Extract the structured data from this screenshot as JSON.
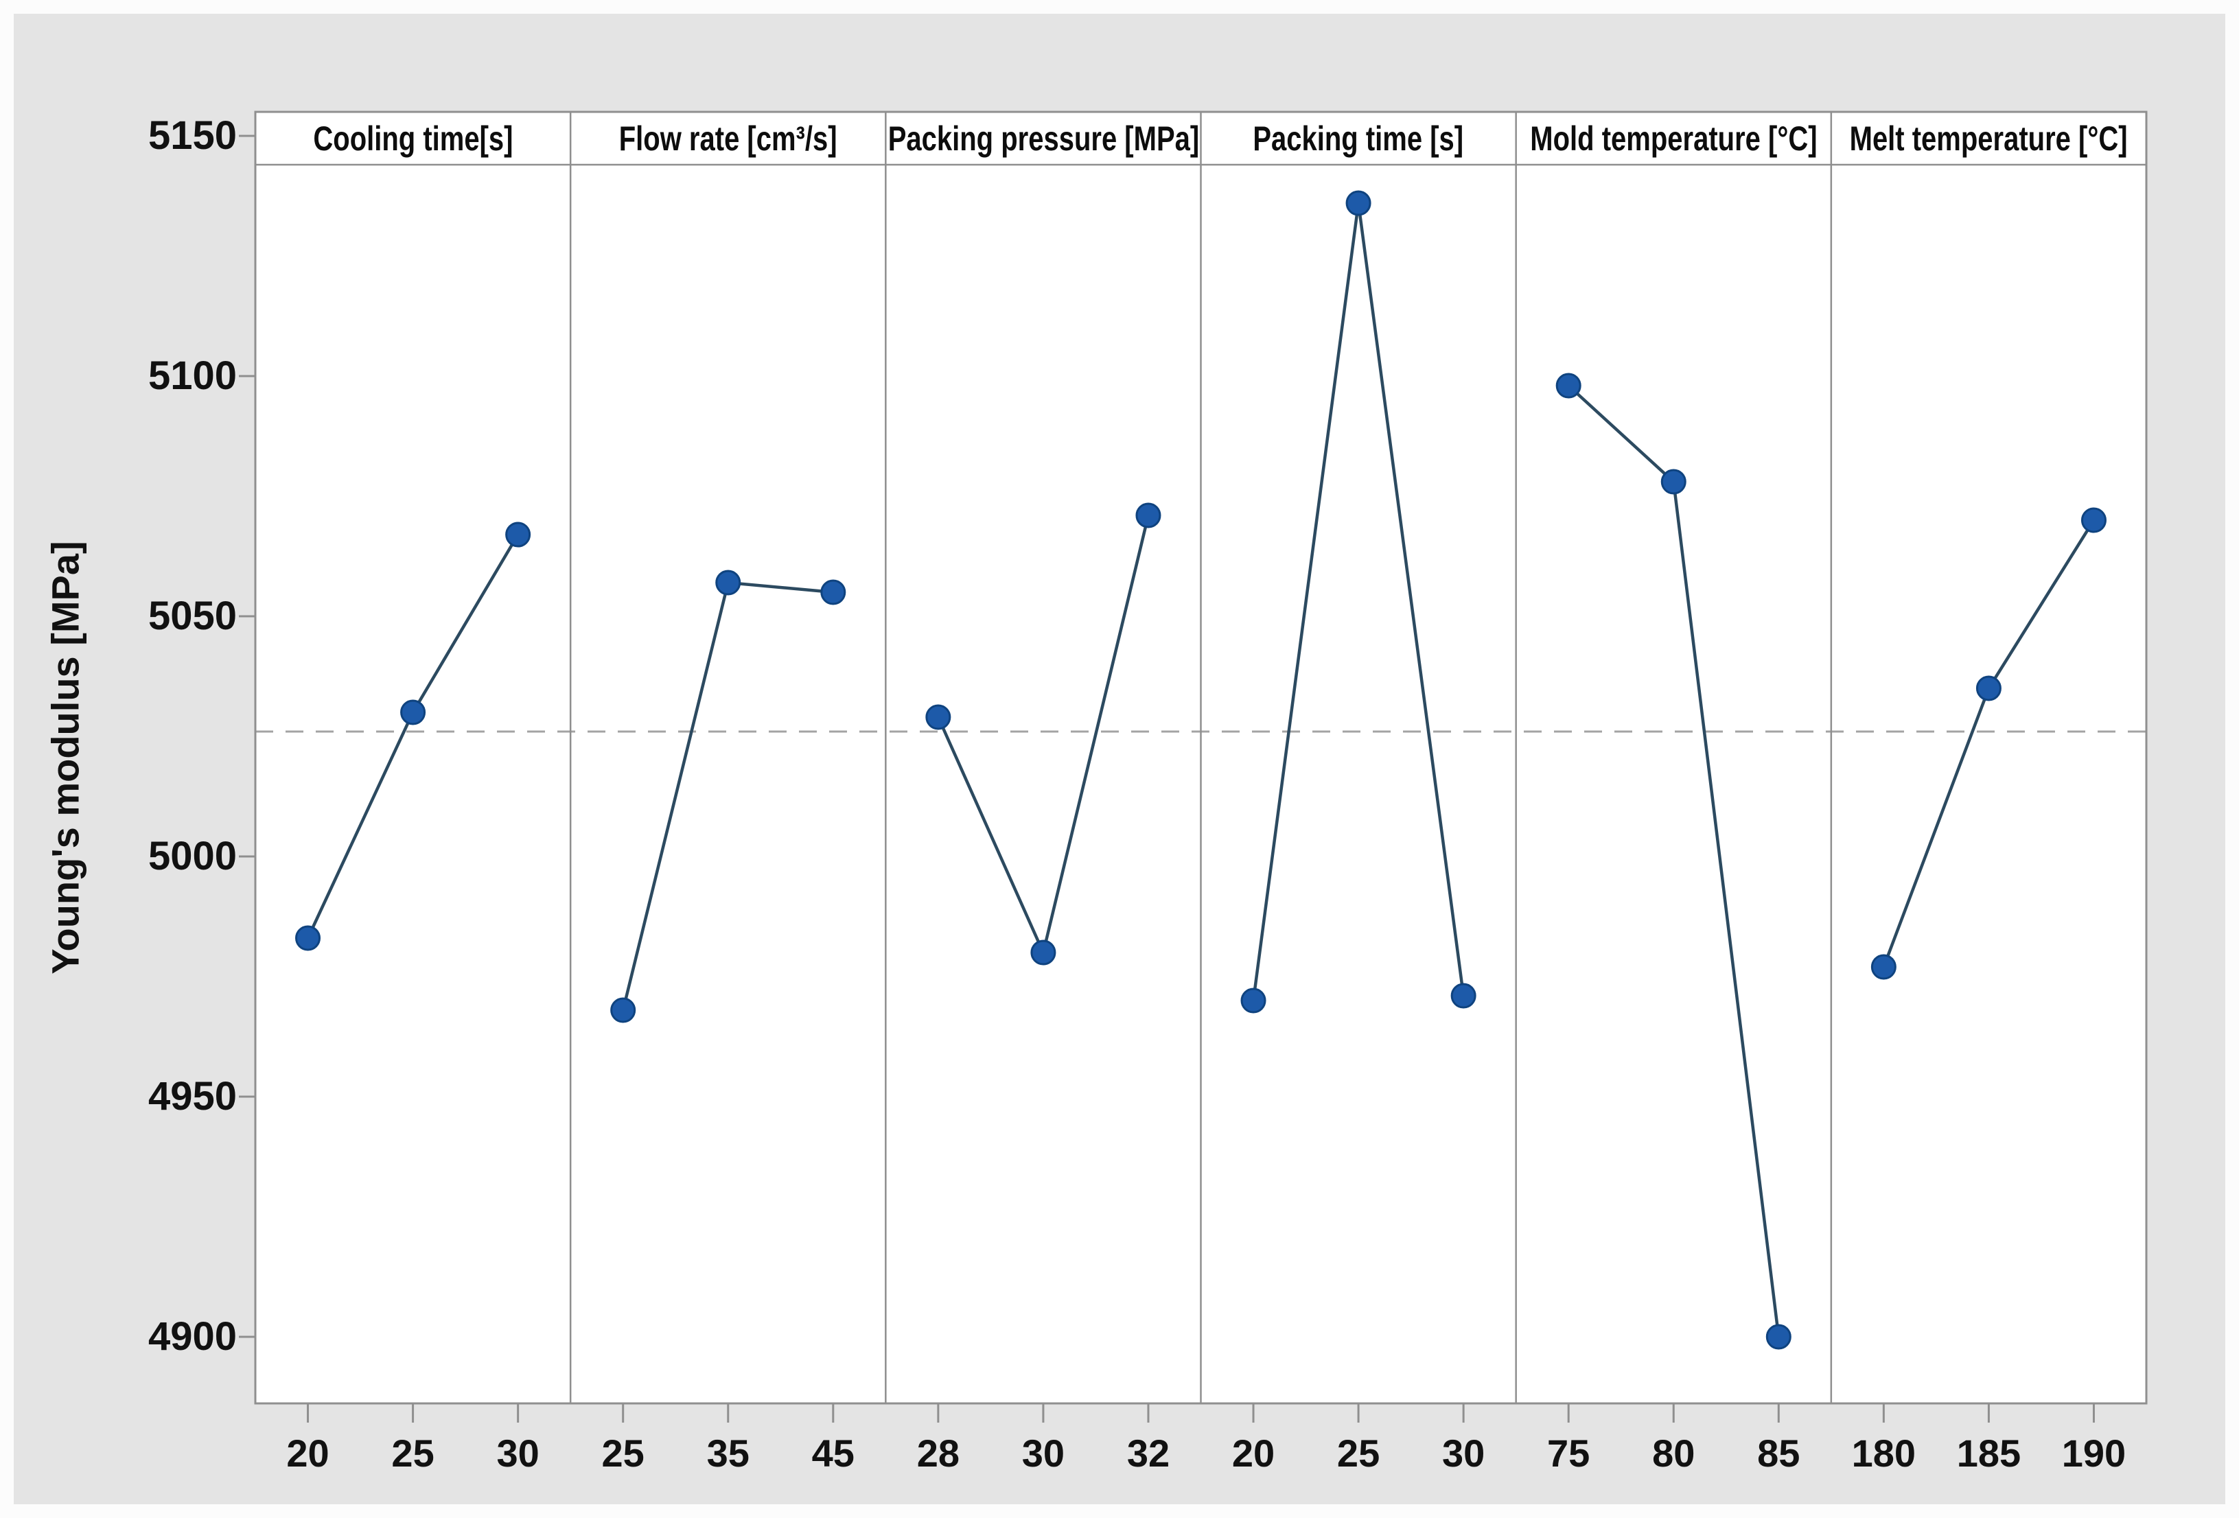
{
  "chart_data": {
    "type": "line",
    "chart_kind": "main-effects-plot",
    "title": "",
    "ylabel": "Young's modulus [MPa]",
    "xlabel": "",
    "y_ticks": [
      "5150",
      "5100",
      "5050",
      "5000",
      "4950",
      "4900"
    ],
    "ylim": [
      4885,
      5157
    ],
    "grid": false,
    "legend": "none",
    "grand_mean_line": 5026,
    "panels": [
      {
        "title": "Cooling time[s]",
        "categories": [
          "20",
          "25",
          "30"
        ],
        "values": [
          4983,
          5030,
          5067
        ]
      },
      {
        "title": "Flow rate [cm³/s]",
        "categories": [
          "25",
          "35",
          "45"
        ],
        "values": [
          4968,
          5057,
          5055
        ]
      },
      {
        "title": "Packing pressure [MPa]",
        "categories": [
          "28",
          "30",
          "32"
        ],
        "values": [
          5029,
          4980,
          5071
        ]
      },
      {
        "title": "Packing time [s]",
        "categories": [
          "20",
          "25",
          "30"
        ],
        "values": [
          4970,
          5136,
          4971
        ]
      },
      {
        "title": "Mold temperature [°C]",
        "categories": [
          "75",
          "80",
          "85"
        ],
        "values": [
          5098,
          5078,
          4900
        ]
      },
      {
        "title": "Melt temperature [°C]",
        "categories": [
          "180",
          "185",
          "190"
        ],
        "values": [
          4977,
          5035,
          5070
        ]
      }
    ]
  },
  "colors": {
    "background": "#e4e4e4",
    "panel_background": "#ffffff",
    "frame": "#8f8f8f",
    "marker_fill": "#1d5aa9",
    "marker_edge": "#0f437f",
    "series_line": "#2c4a60",
    "mean_dash": "#a3a3a3",
    "text": "#111111"
  }
}
